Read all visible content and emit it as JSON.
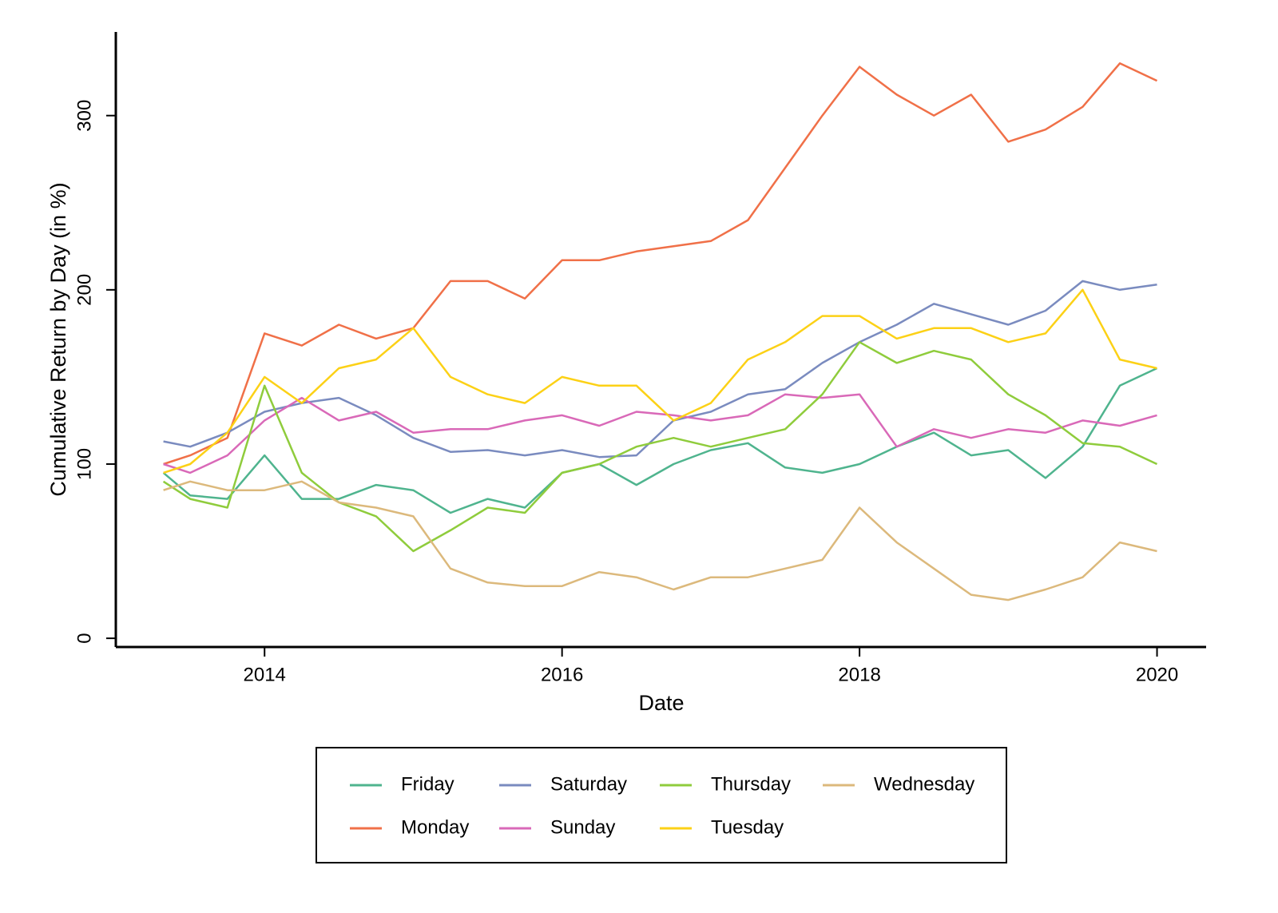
{
  "chart_data": {
    "type": "line",
    "xlabel": "Date",
    "ylabel": "Cumulative Return by Day (in %)",
    "x": [
      2013.32,
      2013.5,
      2013.75,
      2014.0,
      2014.25,
      2014.5,
      2014.75,
      2015.0,
      2015.25,
      2015.5,
      2015.75,
      2016.0,
      2016.25,
      2016.5,
      2016.75,
      2017.0,
      2017.25,
      2017.5,
      2017.75,
      2018.0,
      2018.25,
      2018.5,
      2018.75,
      2019.0,
      2019.25,
      2019.5,
      2019.75,
      2020.0
    ],
    "series": [
      {
        "name": "Friday",
        "color": "#4fb48e",
        "values": [
          95,
          82,
          80,
          105,
          80,
          80,
          88,
          85,
          72,
          80,
          75,
          95,
          100,
          88,
          100,
          108,
          112,
          98,
          95,
          100,
          110,
          118,
          105,
          108,
          92,
          110,
          145,
          155
        ]
      },
      {
        "name": "Monday",
        "color": "#f07048",
        "values": [
          100,
          105,
          115,
          175,
          168,
          180,
          172,
          178,
          205,
          205,
          195,
          217,
          217,
          222,
          225,
          228,
          240,
          270,
          300,
          328,
          312,
          300,
          312,
          285,
          292,
          305,
          330,
          320
        ]
      },
      {
        "name": "Saturday",
        "color": "#7a8bbf",
        "values": [
          113,
          110,
          118,
          130,
          135,
          138,
          128,
          115,
          107,
          108,
          105,
          108,
          104,
          105,
          125,
          130,
          140,
          143,
          158,
          170,
          180,
          192,
          186,
          180,
          188,
          205,
          200,
          203
        ]
      },
      {
        "name": "Sunday",
        "color": "#d969b8",
        "values": [
          100,
          95,
          105,
          125,
          138,
          125,
          130,
          118,
          120,
          120,
          125,
          128,
          122,
          130,
          128,
          125,
          128,
          140,
          138,
          140,
          110,
          120,
          115,
          120,
          118,
          125,
          122,
          128
        ]
      },
      {
        "name": "Thursday",
        "color": "#8fcc3c",
        "values": [
          90,
          80,
          75,
          145,
          95,
          78,
          70,
          50,
          62,
          75,
          72,
          95,
          100,
          110,
          115,
          110,
          115,
          120,
          140,
          170,
          158,
          165,
          160,
          140,
          128,
          112,
          110,
          100
        ]
      },
      {
        "name": "Tuesday",
        "color": "#fcd116",
        "values": [
          95,
          100,
          118,
          150,
          135,
          155,
          160,
          178,
          150,
          140,
          135,
          150,
          145,
          145,
          125,
          135,
          160,
          170,
          185,
          185,
          172,
          178,
          178,
          170,
          175,
          200,
          160,
          155
        ]
      },
      {
        "name": "Wednesday",
        "color": "#dcb97c",
        "values": [
          85,
          90,
          85,
          85,
          90,
          78,
          75,
          70,
          40,
          32,
          30,
          30,
          38,
          35,
          28,
          35,
          35,
          40,
          45,
          75,
          55,
          40,
          25,
          22,
          28,
          35,
          55,
          50
        ]
      }
    ],
    "xlim": [
      2013,
      2020.33
    ],
    "xticks": [
      2014,
      2016,
      2018,
      2020
    ],
    "ylim": [
      -5,
      348
    ],
    "yticks": [
      0,
      100,
      200,
      300
    ]
  }
}
